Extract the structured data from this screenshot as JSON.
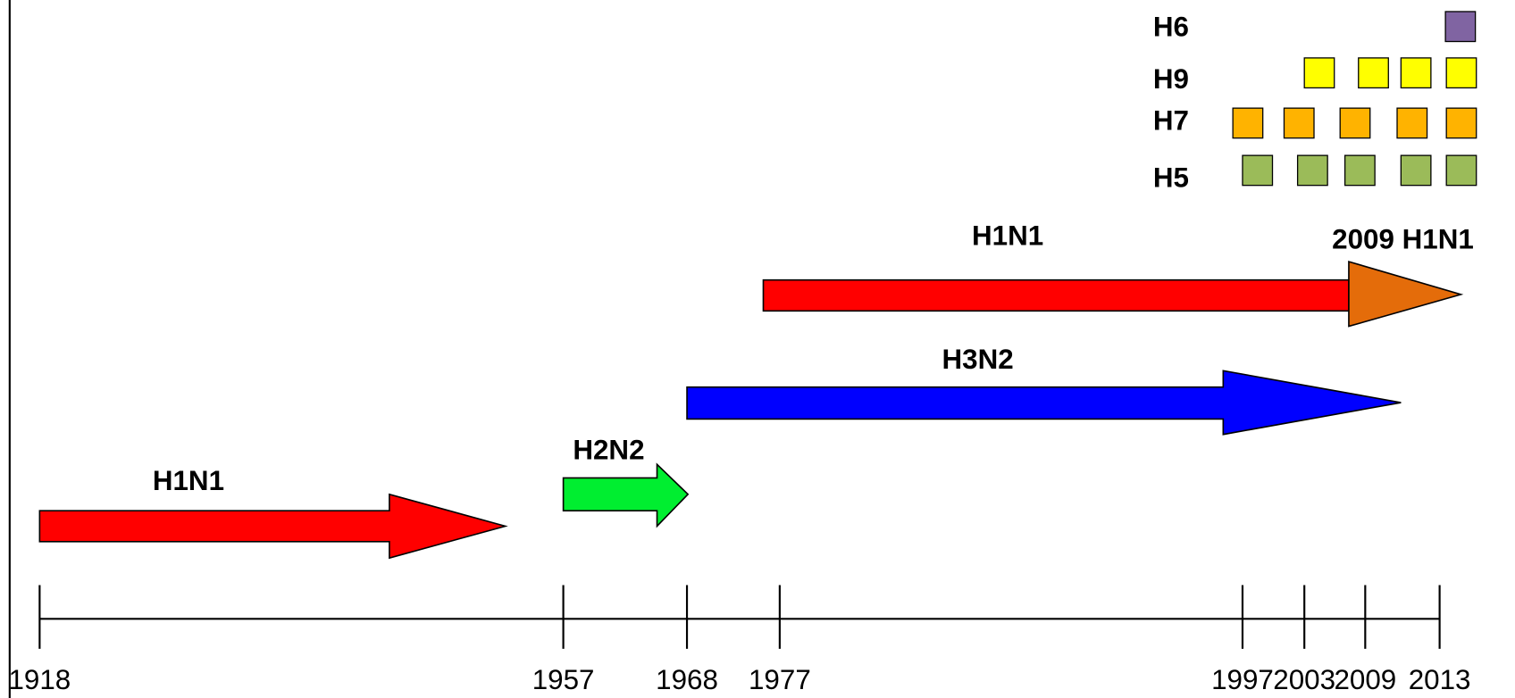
{
  "axis": {
    "years": [
      "1918",
      "1957",
      "1968",
      "1977",
      "1997",
      "2003",
      "2009",
      "2013"
    ]
  },
  "arrows": [
    {
      "label": "H1N1"
    },
    {
      "label": "H2N2"
    },
    {
      "label": "H3N2"
    },
    {
      "label": "H1N1"
    },
    {
      "label": "2009 H1N1"
    }
  ],
  "subtypes": [
    {
      "label": "H6"
    },
    {
      "label": "H9"
    },
    {
      "label": "H7"
    },
    {
      "label": "H5"
    }
  ]
}
